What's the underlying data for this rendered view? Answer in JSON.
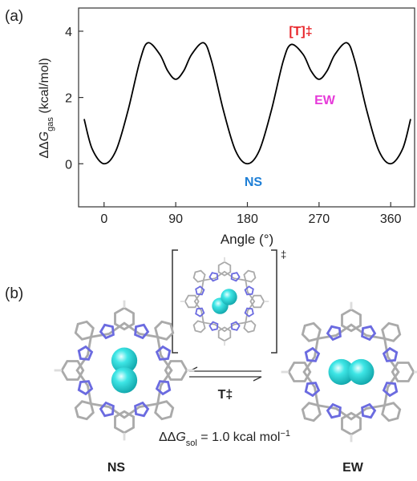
{
  "panel_labels": [
    "(a)",
    "(b)"
  ],
  "chart_data": {
    "type": "line",
    "x": [
      -25,
      -15,
      0,
      15,
      30,
      45,
      55,
      70,
      80,
      90,
      100,
      110,
      125,
      135,
      150,
      165,
      180,
      195,
      210,
      225,
      235,
      250,
      260,
      270,
      280,
      290,
      305,
      315,
      330,
      345,
      360,
      375,
      385
    ],
    "values": [
      1.35,
      0.45,
      0,
      0.4,
      1.6,
      3.1,
      3.65,
      3.3,
      2.8,
      2.55,
      2.8,
      3.3,
      3.65,
      3.1,
      1.6,
      0.4,
      0,
      0.4,
      1.6,
      3.1,
      3.6,
      3.3,
      2.8,
      2.55,
      2.8,
      3.3,
      3.65,
      3.1,
      1.6,
      0.4,
      0,
      0.45,
      1.35
    ],
    "color": "#000000",
    "xlim": [
      -32,
      390
    ],
    "ylim": [
      -1.3,
      4.7
    ],
    "xticks": [
      0,
      90,
      180,
      270,
      360
    ],
    "yticks": [
      0,
      2,
      4
    ],
    "xlabel": "Angle (°)",
    "ylabel": {
      "symbol": "ΔΔ",
      "variable": "G",
      "subscript": "gas",
      "unit": " (kcal/mol)"
    },
    "annotations": [
      {
        "text": "[T]‡",
        "color": "#e8262b"
      },
      {
        "text": "EW",
        "color": "#e63ad9"
      },
      {
        "text": "NS",
        "color": "#1e7fd6"
      }
    ]
  },
  "scheme": {
    "dagger": "‡",
    "transition_label": "T‡",
    "energy": {
      "symbol": "ΔΔ",
      "variable": "G",
      "subscript": "sol",
      "text": " = 1.0  kcal mol",
      "superscript": "−1"
    },
    "left_label": "NS",
    "right_label": "EW"
  }
}
